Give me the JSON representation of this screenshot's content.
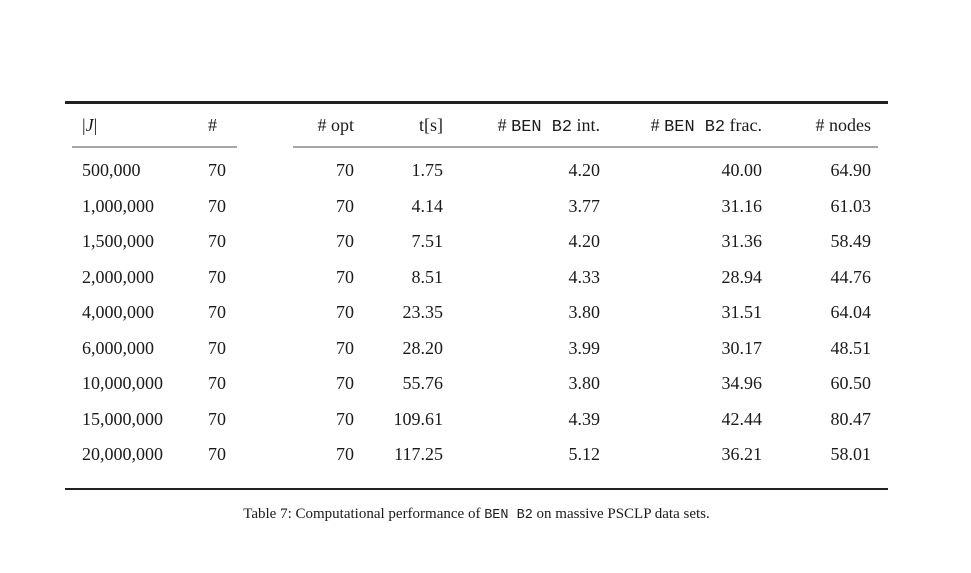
{
  "page": {
    "background_color": "#ffffff",
    "text_color": "#1b1b1b",
    "rule_heavy_color": "#222222",
    "rule_light_color": "#a6a6a6"
  },
  "table": {
    "header": {
      "j_col": {
        "bar1": "|",
        "symbol": "J",
        "bar2": "|"
      },
      "count": "#",
      "opt": "# opt",
      "time": "t[s]",
      "ben_int": {
        "hash": "# ",
        "mono": "BEN B2",
        "suffix": " int."
      },
      "ben_frac": {
        "hash": "# ",
        "mono": "BEN B2",
        "suffix": " frac."
      },
      "nodes": "# nodes"
    },
    "rows": [
      [
        "500,000",
        "70",
        "70",
        "1.75",
        "4.20",
        "40.00",
        "64.90"
      ],
      [
        "1,000,000",
        "70",
        "70",
        "4.14",
        "3.77",
        "31.16",
        "61.03"
      ],
      [
        "1,500,000",
        "70",
        "70",
        "7.51",
        "4.20",
        "31.36",
        "58.49"
      ],
      [
        "2,000,000",
        "70",
        "70",
        "8.51",
        "4.33",
        "28.94",
        "44.76"
      ],
      [
        "4,000,000",
        "70",
        "70",
        "23.35",
        "3.80",
        "31.51",
        "64.04"
      ],
      [
        "6,000,000",
        "70",
        "70",
        "28.20",
        "3.99",
        "30.17",
        "48.51"
      ],
      [
        "10,000,000",
        "70",
        "70",
        "55.76",
        "3.80",
        "34.96",
        "60.50"
      ],
      [
        "15,000,000",
        "70",
        "70",
        "109.61",
        "4.39",
        "42.44",
        "80.47"
      ],
      [
        "20,000,000",
        "70",
        "70",
        "117.25",
        "5.12",
        "36.21",
        "58.01"
      ]
    ]
  },
  "caption": {
    "prefix": "Table 7: Computational performance of ",
    "mono": "BEN B2",
    "suffix": " on massive PSCLP data sets."
  }
}
